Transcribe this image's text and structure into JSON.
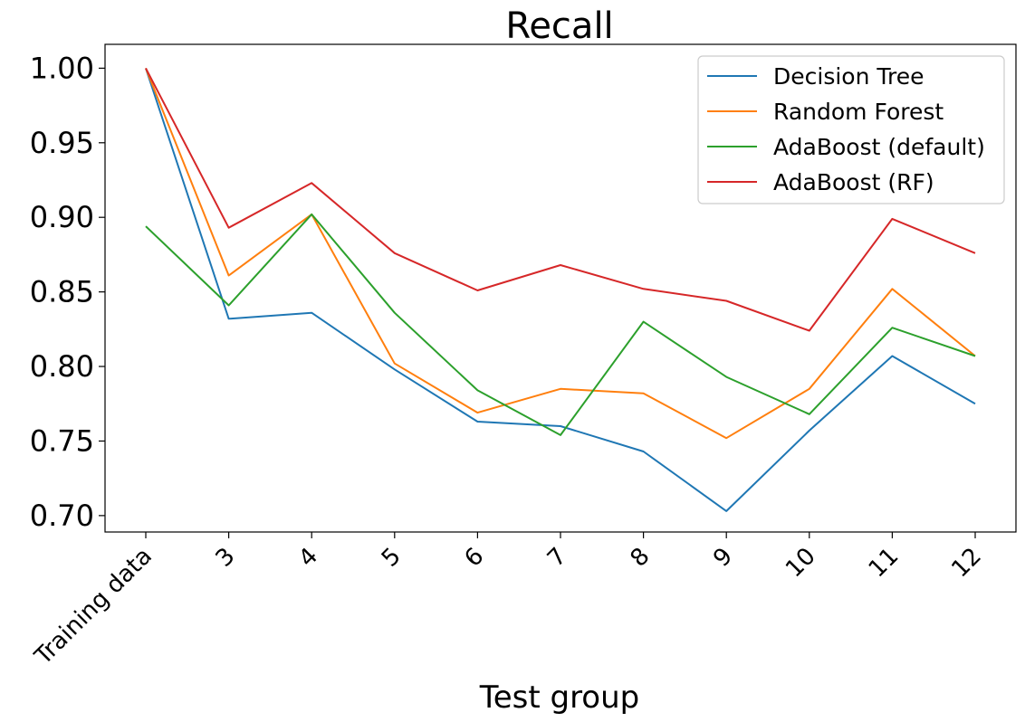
{
  "chart_data": {
    "type": "line",
    "title": "Recall",
    "xlabel": "Test group",
    "ylabel": "",
    "categories": [
      "Training data",
      "3",
      "4",
      "5",
      "6",
      "7",
      "8",
      "9",
      "10",
      "11",
      "12"
    ],
    "yticks": [
      "0.70",
      "0.75",
      "0.80",
      "0.85",
      "0.90",
      "0.95",
      "1.00"
    ],
    "ylim": [
      0.689,
      1.016
    ],
    "grid": false,
    "legend_position": "top-right",
    "series": [
      {
        "name": "Decision Tree",
        "color": "#1f77b4",
        "values": [
          1.0,
          0.832,
          0.836,
          0.798,
          0.763,
          0.76,
          0.743,
          0.703,
          0.757,
          0.807,
          0.775
        ]
      },
      {
        "name": "Random Forest",
        "color": "#ff7f0e",
        "values": [
          1.0,
          0.861,
          0.902,
          0.802,
          0.769,
          0.785,
          0.782,
          0.752,
          0.785,
          0.852,
          0.807
        ]
      },
      {
        "name": "AdaBoost (default)",
        "color": "#2ca02c",
        "values": [
          0.894,
          0.841,
          0.902,
          0.836,
          0.784,
          0.754,
          0.83,
          0.793,
          0.768,
          0.826,
          0.807
        ]
      },
      {
        "name": "AdaBoost (RF)",
        "color": "#d62728",
        "values": [
          1.0,
          0.893,
          0.923,
          0.876,
          0.851,
          0.868,
          0.852,
          0.844,
          0.824,
          0.899,
          0.876
        ]
      }
    ]
  }
}
